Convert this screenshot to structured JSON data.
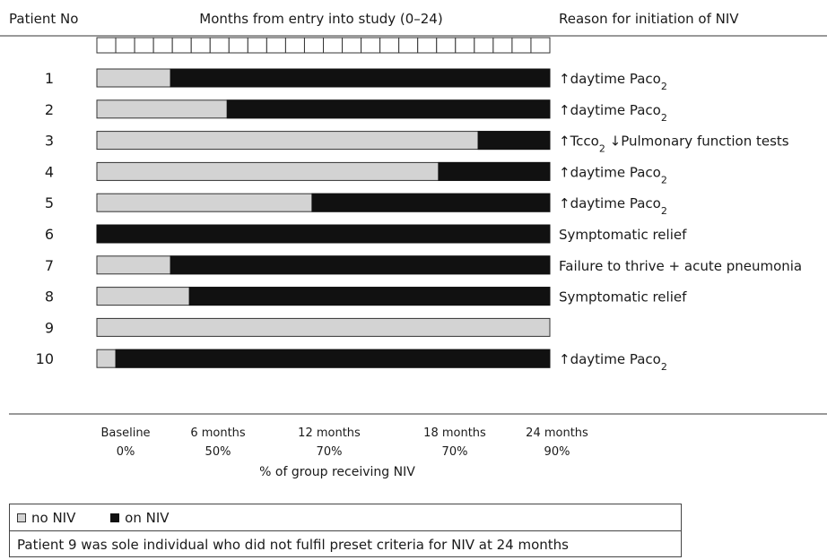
{
  "chart_data": {
    "type": "bar",
    "orientation": "horizontal-stacked",
    "title": "",
    "header": {
      "patient_col": "Patient No",
      "time_col": "Months from entry into study (0–24)",
      "reason_col": "Reason for initiation of NIV"
    },
    "month_range": [
      0,
      24
    ],
    "series": [
      {
        "name": "no NIV",
        "color": "#d3d3d3"
      },
      {
        "name": "on NIV",
        "color": "#111111"
      }
    ],
    "patients": [
      {
        "id": "1",
        "niv_start_month": 3.9,
        "reason": "↑daytime Paco",
        "sub": "2"
      },
      {
        "id": "2",
        "niv_start_month": 6.9,
        "reason": "↑daytime Paco",
        "sub": "2"
      },
      {
        "id": "3",
        "niv_start_month": 20.2,
        "reason": "↑Tcco",
        "sub": "2",
        "reason_after": " ↓Pulmonary function tests"
      },
      {
        "id": "4",
        "niv_start_month": 18.1,
        "reason": "↑daytime Paco",
        "sub": "2"
      },
      {
        "id": "5",
        "niv_start_month": 11.4,
        "reason": "↑daytime Paco",
        "sub": "2"
      },
      {
        "id": "6",
        "niv_start_month": 0,
        "reason": "Symptomatic relief",
        "sub": ""
      },
      {
        "id": "7",
        "niv_start_month": 3.9,
        "reason": "Failure to thrive + acute pneumonia",
        "sub": ""
      },
      {
        "id": "8",
        "niv_start_month": 4.9,
        "reason": "Symptomatic relief",
        "sub": ""
      },
      {
        "id": "9",
        "niv_start_month": null,
        "reason": "",
        "sub": ""
      },
      {
        "id": "10",
        "niv_start_month": 1.0,
        "reason": "↑daytime Paco",
        "sub": "2"
      }
    ],
    "x_ticks": [
      {
        "month": 0,
        "label": "Baseline",
        "pct": "0%"
      },
      {
        "month": 6,
        "label": "6 months",
        "pct": "50%"
      },
      {
        "month": 12,
        "label": "12 months",
        "pct": "70%"
      },
      {
        "month": 18,
        "label": "18 months",
        "pct": "70%"
      },
      {
        "month": 24,
        "label": "24 months",
        "pct": "90%"
      }
    ],
    "xlabel": "% of group receiving NIV"
  },
  "legend": {
    "no_niv": "no NIV",
    "on_niv": "on NIV",
    "note": "Patient 9 was sole individual who did not fulfil preset criteria for NIV at 24 months"
  }
}
